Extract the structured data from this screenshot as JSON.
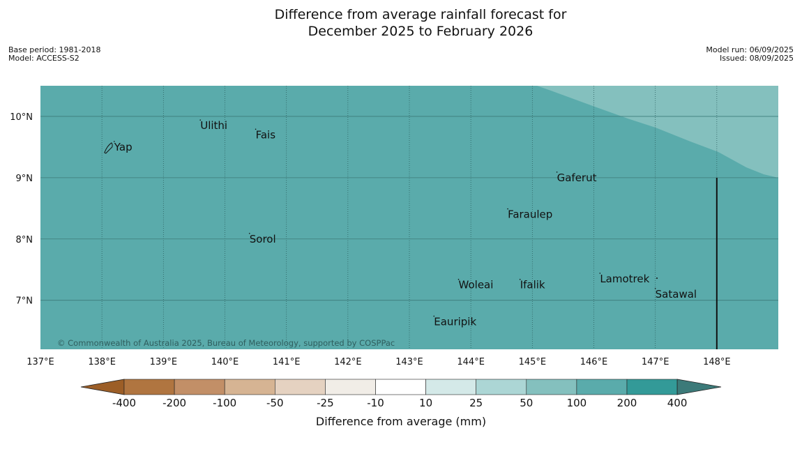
{
  "title_line1": "Difference from average rainfall forecast for",
  "title_line2": "December 2025 to February 2026",
  "meta_left": {
    "base_period": "Base period: 1981-2018",
    "model": "Model: ACCESS-S2"
  },
  "meta_right": {
    "model_run": "Model run: 06/09/2025",
    "issued": "Issued: 08/09/2025"
  },
  "map": {
    "lon_range": [
      137,
      149
    ],
    "lat_range": [
      6.2,
      10.5
    ],
    "lon_ticks": [
      "137°E",
      "138°E",
      "139°E",
      "140°E",
      "141°E",
      "142°E",
      "143°E",
      "144°E",
      "145°E",
      "146°E",
      "147°E",
      "148°E"
    ],
    "lat_ticks": [
      "10°N",
      "9°N",
      "8°N",
      "7°N"
    ],
    "base_fill": "#5aabab",
    "wet_fill": "#84c0be",
    "places": [
      {
        "name": "Yap",
        "lon": 138.2,
        "lat": 9.5
      },
      {
        "name": "Ulithi",
        "lon": 139.6,
        "lat": 9.85
      },
      {
        "name": "Fais",
        "lon": 140.5,
        "lat": 9.7
      },
      {
        "name": "Gaferut",
        "lon": 145.4,
        "lat": 9.0
      },
      {
        "name": "Faraulep",
        "lon": 144.6,
        "lat": 8.4
      },
      {
        "name": "Sorol",
        "lon": 140.4,
        "lat": 8.0
      },
      {
        "name": "Lamotrek",
        "lon": 146.1,
        "lat": 7.35
      },
      {
        "name": "Woleai",
        "lon": 143.8,
        "lat": 7.25
      },
      {
        "name": "Ifalik",
        "lon": 144.8,
        "lat": 7.25
      },
      {
        "name": "Satawal",
        "lon": 147.0,
        "lat": 7.1
      },
      {
        "name": "Eauripik",
        "lon": 143.4,
        "lat": 6.65
      }
    ],
    "copyright": "© Commonwealth of Australia 2025, Bureau of Meteorology, supported by COSPPac"
  },
  "colorbar": {
    "ticks": [
      "-400",
      "-200",
      "-100",
      "-50",
      "-25",
      "-10",
      "10",
      "25",
      "50",
      "100",
      "200",
      "400"
    ],
    "colors": [
      "#9c5e27",
      "#b07540",
      "#c28f67",
      "#d6b493",
      "#e5d2c1",
      "#f1ede7",
      "#ffffff",
      "#d4e9e8",
      "#acd6d5",
      "#84c0be",
      "#5aabab",
      "#339a98",
      "#3c7a79"
    ],
    "label": "Difference from average (mm)"
  }
}
